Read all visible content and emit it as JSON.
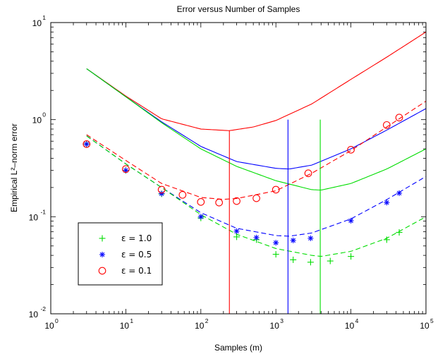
{
  "chart_data": {
    "type": "line",
    "title": "Error versus Number of Samples",
    "xlabel": "Samples (m)",
    "ylabel": "Empirical L²–norm error",
    "xscale": "log",
    "yscale": "log",
    "xlim": [
      1,
      100000
    ],
    "ylim": [
      0.01,
      10
    ],
    "x_ticks": [
      {
        "base": "10",
        "exp": "0",
        "value": 1
      },
      {
        "base": "10",
        "exp": "1",
        "value": 10
      },
      {
        "base": "10",
        "exp": "2",
        "value": 100
      },
      {
        "base": "10",
        "exp": "3",
        "value": 1000
      },
      {
        "base": "10",
        "exp": "4",
        "value": 10000
      },
      {
        "base": "10",
        "exp": "5",
        "value": 100000
      }
    ],
    "y_ticks": [
      {
        "base": "10",
        "exp": "-2",
        "value": 0.01
      },
      {
        "base": "10",
        "exp": "-1",
        "value": 0.1
      },
      {
        "base": "10",
        "exp": "0",
        "value": 1
      },
      {
        "base": "10",
        "exp": "1",
        "value": 10
      }
    ],
    "legend": {
      "placement": "bottom-left",
      "entries": [
        {
          "label": "ε = 1.0",
          "marker": "+",
          "color": "#00dd00"
        },
        {
          "label": "ε = 0.5",
          "marker": "*",
          "color": "#0000ff"
        },
        {
          "label": "ε = 0.1",
          "marker": "o",
          "color": "#ff0000"
        }
      ]
    },
    "bound_curves": [
      {
        "color": "#ff0000",
        "style": "solid",
        "x": [
          3,
          10,
          30,
          100,
          240,
          500,
          1000,
          3000,
          10000,
          30000,
          100000
        ],
        "y": [
          3.35,
          1.75,
          1.02,
          0.8,
          0.77,
          0.84,
          0.98,
          1.45,
          2.6,
          4.4,
          8.0
        ]
      },
      {
        "color": "#0000ff",
        "style": "solid",
        "x": [
          3,
          10,
          30,
          100,
          300,
          1000,
          1500,
          3000,
          10000,
          30000,
          100000
        ],
        "y": [
          3.35,
          1.72,
          0.95,
          0.53,
          0.37,
          0.315,
          0.31,
          0.34,
          0.5,
          0.78,
          1.3
        ]
      },
      {
        "color": "#00dd00",
        "style": "solid",
        "x": [
          3,
          10,
          30,
          100,
          300,
          1000,
          3000,
          4000,
          10000,
          30000,
          100000
        ],
        "y": [
          3.35,
          1.72,
          0.93,
          0.5,
          0.33,
          0.235,
          0.19,
          0.188,
          0.22,
          0.31,
          0.5
        ]
      }
    ],
    "optimum_lines": [
      {
        "color": "#ff0000",
        "x": 240,
        "y_top": 0.77
      },
      {
        "color": "#0000ff",
        "x": 1450,
        "y_top": 1.0
      },
      {
        "color": "#00dd00",
        "x": 3900,
        "y_top": 1.0
      }
    ],
    "dashed_curves": [
      {
        "color": "#ff0000",
        "x": [
          3,
          10,
          30,
          100,
          200,
          300,
          1000,
          3000,
          10000,
          30000,
          100000
        ],
        "y": [
          0.7,
          0.38,
          0.22,
          0.158,
          0.151,
          0.154,
          0.185,
          0.28,
          0.48,
          0.84,
          1.55
        ]
      },
      {
        "color": "#0000ff",
        "x": [
          3,
          10,
          30,
          100,
          300,
          1000,
          1500,
          3000,
          10000,
          30000,
          100000
        ],
        "y": [
          0.68,
          0.35,
          0.2,
          0.11,
          0.076,
          0.064,
          0.063,
          0.068,
          0.095,
          0.15,
          0.26
        ]
      },
      {
        "color": "#00dd00",
        "x": [
          3,
          10,
          30,
          100,
          300,
          1000,
          3000,
          4000,
          10000,
          30000,
          100000
        ],
        "y": [
          0.68,
          0.35,
          0.2,
          0.105,
          0.066,
          0.047,
          0.04,
          0.039,
          0.044,
          0.06,
          0.1
        ]
      }
    ],
    "series": [
      {
        "name": "ε = 1.0",
        "marker": "+",
        "color": "#00dd00",
        "x": [
          3,
          10,
          30,
          100,
          300,
          550,
          1000,
          1700,
          2900,
          5300,
          10000,
          30000,
          44000
        ],
        "y": [
          0.56,
          0.3,
          0.172,
          0.097,
          0.062,
          0.058,
          0.041,
          0.036,
          0.034,
          0.035,
          0.039,
          0.058,
          0.069
        ]
      },
      {
        "name": "ε = 0.5",
        "marker": "*",
        "color": "#0000ff",
        "x": [
          3,
          10,
          30,
          100,
          300,
          550,
          1000,
          1700,
          2900,
          10000,
          30000,
          44000
        ],
        "y": [
          0.56,
          0.3,
          0.173,
          0.1,
          0.071,
          0.061,
          0.054,
          0.057,
          0.06,
          0.091,
          0.14,
          0.175
        ]
      },
      {
        "name": "ε = 0.1",
        "marker": "o",
        "color": "#ff0000",
        "x": [
          3,
          10,
          30,
          57,
          100,
          175,
          300,
          550,
          1000,
          2700,
          10000,
          30000,
          44000
        ],
        "y": [
          0.56,
          0.31,
          0.19,
          0.168,
          0.142,
          0.14,
          0.145,
          0.155,
          0.19,
          0.28,
          0.49,
          0.88,
          1.05
        ]
      }
    ]
  }
}
